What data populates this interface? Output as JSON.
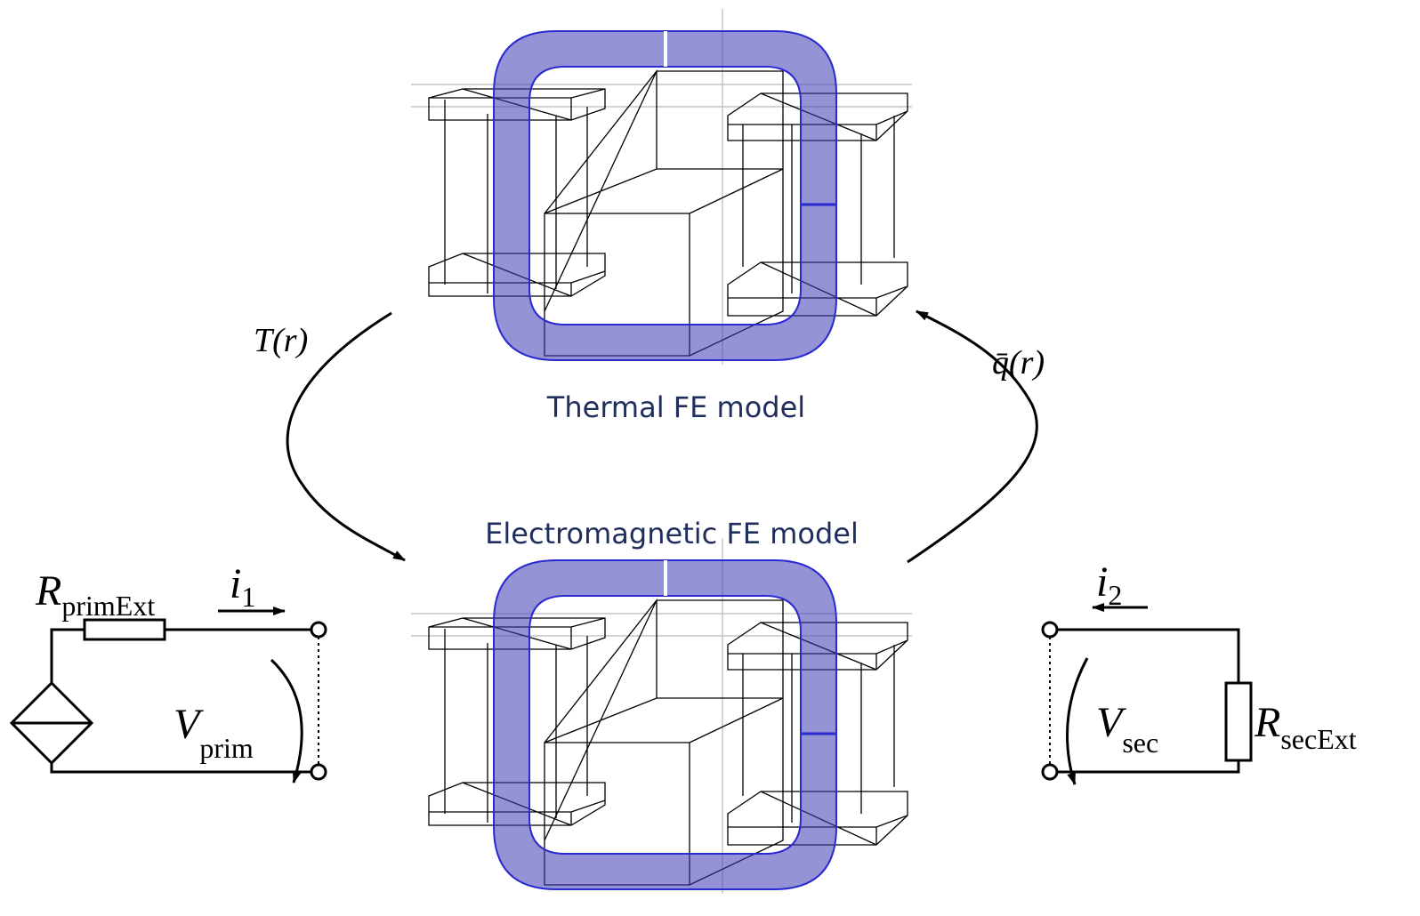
{
  "thermal_model": {
    "label": "Thermal FE model"
  },
  "electromagnetic_model": {
    "label": "Electromagnetic FE model"
  },
  "coupling": {
    "temperature": "T(r)",
    "heat_source": "q̄(r)"
  },
  "primary_circuit": {
    "resistor": {
      "main": "R",
      "sub": "primExt"
    },
    "current": {
      "main": "i",
      "sub": "1"
    },
    "voltage": {
      "main": "V",
      "sub": "prim"
    }
  },
  "secondary_circuit": {
    "resistor": {
      "main": "R",
      "sub": "secExt"
    },
    "current": {
      "main": "i",
      "sub": "2"
    },
    "voltage": {
      "main": "V",
      "sub": "sec"
    }
  }
}
